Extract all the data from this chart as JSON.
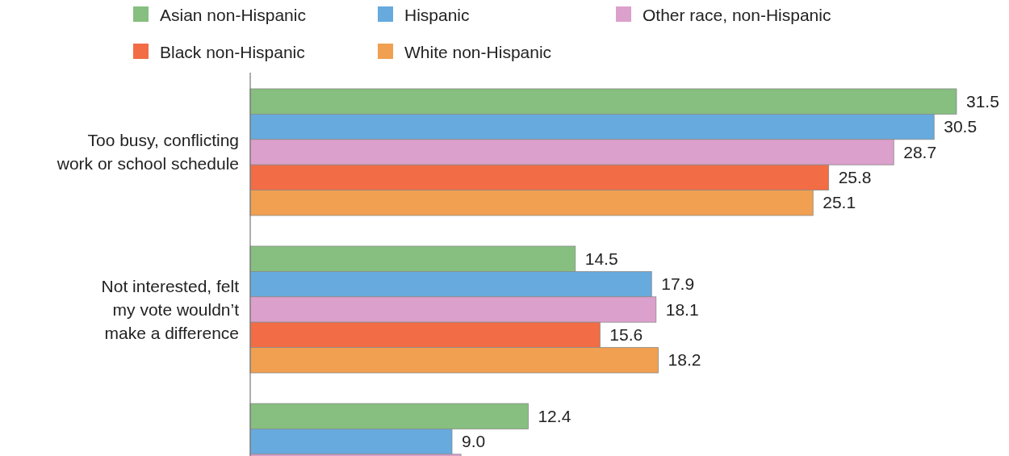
{
  "chart_data": {
    "type": "bar",
    "orientation": "horizontal",
    "legend": "top",
    "categories": [
      "Too busy, conflicting\nwork or school schedule",
      "Not interested, felt\nmy vote wouldn’t\nmake a difference",
      null
    ],
    "series": [
      {
        "name": "Asian non-Hispanic",
        "color": "#86bf7f",
        "values": [
          31.5,
          14.5,
          12.4
        ],
        "value_labels": [
          "31.5",
          "14.5",
          "12.4"
        ]
      },
      {
        "name": "Hispanic",
        "color": "#66aade",
        "values": [
          30.5,
          17.9,
          9.0
        ],
        "value_labels": [
          "30.5",
          "17.9",
          "9.0"
        ]
      },
      {
        "name": "Other race, non-Hispanic",
        "color": "#dca0cc",
        "values": [
          28.7,
          18.1,
          9.4
        ],
        "value_labels": [
          "28.7",
          "18.1",
          null
        ]
      },
      {
        "name": "Black non-Hispanic",
        "color": "#f26c45",
        "values": [
          25.8,
          15.6,
          null
        ],
        "value_labels": [
          "25.8",
          "15.6",
          null
        ]
      },
      {
        "name": "White non-Hispanic",
        "color": "#f0a050",
        "values": [
          25.1,
          18.2,
          null
        ],
        "value_labels": [
          "25.1",
          "18.2",
          null
        ]
      }
    ]
  }
}
